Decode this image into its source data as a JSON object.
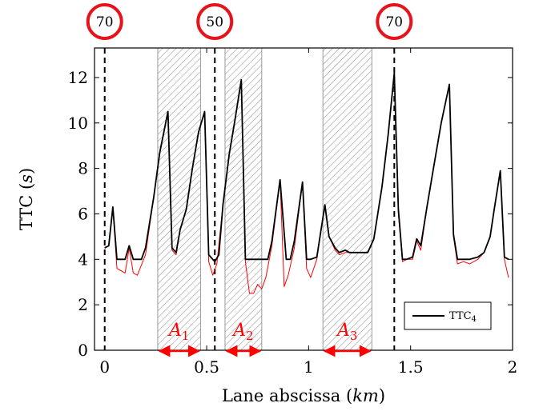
{
  "chart_data": {
    "type": "line",
    "xlabel": "Lane abscissa (km)",
    "ylabel": "TTC (s)",
    "xlim": [
      -0.05,
      2.0
    ],
    "ylim": [
      0,
      13.3
    ],
    "xticks": [
      0,
      0.5,
      1,
      1.5,
      2
    ],
    "xtick_labels": [
      "0",
      "0.5",
      "1",
      "1.5",
      "2"
    ],
    "yticks": [
      0,
      2,
      4,
      6,
      8,
      10,
      12
    ],
    "ytick_labels": [
      "0",
      "2",
      "4",
      "6",
      "8",
      "10",
      "12"
    ],
    "grid": false,
    "legend_position": "bottom-right",
    "legend": [
      {
        "label": "TTC",
        "sub": "4"
      }
    ],
    "speed_limit_signs": [
      {
        "x": 0.0,
        "label": "70"
      },
      {
        "x": 0.54,
        "label": "50"
      },
      {
        "x": 1.42,
        "label": "70"
      }
    ],
    "zones": [
      {
        "label": "A",
        "sub": "1",
        "x_start": 0.26,
        "x_end": 0.47
      },
      {
        "label": "A",
        "sub": "2",
        "x_start": 0.59,
        "x_end": 0.77
      },
      {
        "label": "A",
        "sub": "3",
        "x_start": 1.07,
        "x_end": 1.31
      }
    ],
    "series": [
      {
        "name": "TTC4",
        "color": "#000000",
        "points": [
          [
            0,
            4.5
          ],
          [
            0.02,
            4.6
          ],
          [
            0.04,
            6.3
          ],
          [
            0.06,
            4.0
          ],
          [
            0.08,
            4.0
          ],
          [
            0.1,
            4.0
          ],
          [
            0.12,
            4.6
          ],
          [
            0.14,
            4.0
          ],
          [
            0.18,
            4.0
          ],
          [
            0.2,
            4.5
          ],
          [
            0.24,
            6.7
          ],
          [
            0.27,
            8.7
          ],
          [
            0.31,
            10.5
          ],
          [
            0.33,
            4.5
          ],
          [
            0.35,
            4.3
          ],
          [
            0.37,
            5.3
          ],
          [
            0.4,
            6.2
          ],
          [
            0.43,
            8.0
          ],
          [
            0.46,
            9.6
          ],
          [
            0.49,
            10.5
          ],
          [
            0.51,
            4.2
          ],
          [
            0.54,
            3.9
          ],
          [
            0.56,
            4.2
          ],
          [
            0.58,
            6.4
          ],
          [
            0.61,
            8.6
          ],
          [
            0.64,
            10.2
          ],
          [
            0.67,
            11.9
          ],
          [
            0.69,
            4.0
          ],
          [
            0.72,
            4.0
          ],
          [
            0.77,
            4.0
          ],
          [
            0.8,
            4.0
          ],
          [
            0.82,
            4.8
          ],
          [
            0.86,
            7.5
          ],
          [
            0.89,
            4.0
          ],
          [
            0.91,
            4.0
          ],
          [
            0.93,
            4.8
          ],
          [
            0.97,
            7.4
          ],
          [
            0.99,
            4.0
          ],
          [
            1.01,
            4.0
          ],
          [
            1.04,
            4.1
          ],
          [
            1.08,
            6.4
          ],
          [
            1.1,
            5.0
          ],
          [
            1.13,
            4.5
          ],
          [
            1.15,
            4.3
          ],
          [
            1.18,
            4.4
          ],
          [
            1.2,
            4.3
          ],
          [
            1.25,
            4.3
          ],
          [
            1.29,
            4.3
          ],
          [
            1.32,
            4.9
          ],
          [
            1.36,
            7.2
          ],
          [
            1.39,
            9.5
          ],
          [
            1.42,
            12.2
          ],
          [
            1.44,
            6.2
          ],
          [
            1.46,
            4.0
          ],
          [
            1.48,
            4.0
          ],
          [
            1.51,
            4.1
          ],
          [
            1.53,
            4.9
          ],
          [
            1.55,
            4.6
          ],
          [
            1.58,
            6.3
          ],
          [
            1.61,
            7.9
          ],
          [
            1.65,
            10.0
          ],
          [
            1.69,
            11.7
          ],
          [
            1.71,
            5.1
          ],
          [
            1.73,
            4.0
          ],
          [
            1.76,
            4.0
          ],
          [
            1.79,
            4.0
          ],
          [
            1.83,
            4.1
          ],
          [
            1.86,
            4.3
          ],
          [
            1.89,
            5.0
          ],
          [
            1.91,
            6.2
          ],
          [
            1.94,
            7.9
          ],
          [
            1.96,
            4.1
          ],
          [
            1.98,
            4.0
          ]
        ]
      },
      {
        "color": "#ff0000",
        "points": [
          [
            0,
            4.5
          ],
          [
            0.02,
            4.6
          ],
          [
            0.04,
            6.3
          ],
          [
            0.06,
            3.6
          ],
          [
            0.08,
            3.5
          ],
          [
            0.1,
            3.4
          ],
          [
            0.12,
            4.5
          ],
          [
            0.14,
            3.4
          ],
          [
            0.16,
            3.3
          ],
          [
            0.2,
            4.2
          ],
          [
            0.24,
            6.7
          ],
          [
            0.27,
            8.7
          ],
          [
            0.31,
            10.5
          ],
          [
            0.33,
            4.4
          ],
          [
            0.35,
            4.2
          ],
          [
            0.37,
            5.3
          ],
          [
            0.4,
            6.2
          ],
          [
            0.43,
            8.0
          ],
          [
            0.46,
            9.6
          ],
          [
            0.49,
            10.5
          ],
          [
            0.51,
            3.9
          ],
          [
            0.53,
            3.3
          ],
          [
            0.55,
            3.8
          ],
          [
            0.58,
            6.4
          ],
          [
            0.61,
            8.6
          ],
          [
            0.64,
            10.2
          ],
          [
            0.67,
            11.9
          ],
          [
            0.69,
            3.9
          ],
          [
            0.71,
            2.5
          ],
          [
            0.73,
            2.5
          ],
          [
            0.75,
            2.9
          ],
          [
            0.77,
            2.7
          ],
          [
            0.79,
            3.2
          ],
          [
            0.82,
            4.6
          ],
          [
            0.86,
            7.5
          ],
          [
            0.88,
            2.8
          ],
          [
            0.9,
            3.3
          ],
          [
            0.93,
            4.5
          ],
          [
            0.97,
            7.4
          ],
          [
            0.99,
            3.6
          ],
          [
            1.01,
            3.2
          ],
          [
            1.04,
            4.0
          ],
          [
            1.08,
            6.4
          ],
          [
            1.1,
            5.0
          ],
          [
            1.13,
            4.4
          ],
          [
            1.15,
            4.2
          ],
          [
            1.18,
            4.3
          ],
          [
            1.2,
            4.3
          ],
          [
            1.25,
            4.3
          ],
          [
            1.29,
            4.3
          ],
          [
            1.32,
            4.9
          ],
          [
            1.36,
            7.2
          ],
          [
            1.39,
            9.5
          ],
          [
            1.42,
            12.2
          ],
          [
            1.44,
            6.0
          ],
          [
            1.46,
            3.9
          ],
          [
            1.48,
            4.0
          ],
          [
            1.51,
            4.0
          ],
          [
            1.53,
            4.8
          ],
          [
            1.55,
            4.4
          ],
          [
            1.58,
            6.3
          ],
          [
            1.61,
            7.9
          ],
          [
            1.65,
            10.0
          ],
          [
            1.69,
            11.7
          ],
          [
            1.71,
            5.0
          ],
          [
            1.73,
            3.8
          ],
          [
            1.76,
            3.9
          ],
          [
            1.79,
            3.8
          ],
          [
            1.83,
            4.0
          ],
          [
            1.86,
            4.3
          ],
          [
            1.89,
            5.0
          ],
          [
            1.91,
            6.2
          ],
          [
            1.94,
            7.9
          ],
          [
            1.96,
            4.0
          ],
          [
            1.98,
            3.2
          ]
        ]
      }
    ]
  }
}
